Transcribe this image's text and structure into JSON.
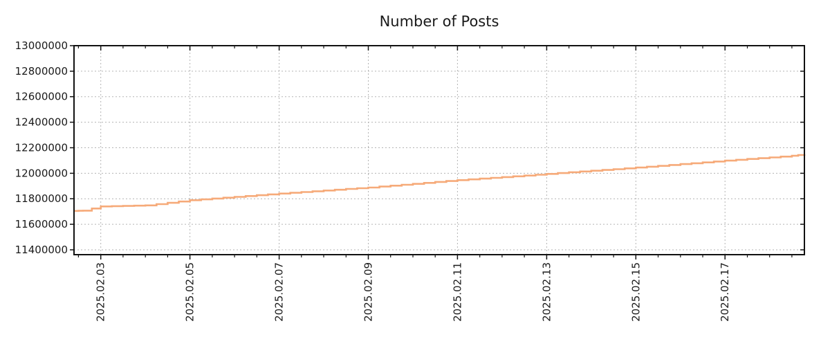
{
  "chart_data": {
    "type": "line",
    "title": "Number of Posts",
    "xlabel": "",
    "ylabel": "",
    "legend": "none",
    "grid": "dotted",
    "xlim_days_feb_2025": [
      2.4,
      18.78
    ],
    "ylim": [
      11362000,
      13000000
    ],
    "y_ticks": [
      {
        "value": 11400000,
        "label": "11400000"
      },
      {
        "value": 11600000,
        "label": "11600000"
      },
      {
        "value": 11800000,
        "label": "11800000"
      },
      {
        "value": 12000000,
        "label": "12000000"
      },
      {
        "value": 12200000,
        "label": "12200000"
      },
      {
        "value": 12400000,
        "label": "12400000"
      },
      {
        "value": 12600000,
        "label": "12600000"
      },
      {
        "value": 12800000,
        "label": "12800000"
      },
      {
        "value": 13000000,
        "label": "13000000"
      }
    ],
    "x_ticks": [
      {
        "day": 3,
        "label": "2025.02.03"
      },
      {
        "day": 5,
        "label": "2025.02.05"
      },
      {
        "day": 7,
        "label": "2025.02.07"
      },
      {
        "day": 9,
        "label": "2025.02.09"
      },
      {
        "day": 11,
        "label": "2025.02.11"
      },
      {
        "day": 13,
        "label": "2025.02.13"
      },
      {
        "day": 15,
        "label": "2025.02.15"
      },
      {
        "day": 17,
        "label": "2025.02.17"
      }
    ],
    "x_minor_tick_step_days": 0.5,
    "colors": {
      "line": "#f6aa79",
      "grid": "#b3b3b3",
      "axis": "#111111",
      "text": "#1a1a1a",
      "background": "#ffffff"
    },
    "series": [
      {
        "name": "posts",
        "x_days": [
          2.4,
          2.6,
          3.0,
          3.5,
          4.0,
          4.5,
          5.0,
          5.5,
          6.0,
          6.5,
          7.0,
          7.5,
          8.0,
          8.5,
          9.0,
          9.5,
          10.0,
          10.5,
          11.0,
          11.5,
          12.0,
          12.5,
          13.0,
          13.5,
          14.0,
          14.5,
          15.0,
          15.5,
          16.0,
          16.5,
          17.0,
          17.5,
          18.0,
          18.5,
          18.78
        ],
        "values": [
          11705000,
          11707000,
          11740000,
          11744000,
          11748000,
          11768000,
          11789000,
          11802000,
          11815000,
          11828000,
          11841000,
          11853000,
          11865000,
          11877000,
          11888000,
          11903000,
          11917000,
          11932000,
          11946000,
          11958000,
          11970000,
          11982000,
          11995000,
          12008000,
          12020000,
          12032000,
          12045000,
          12058000,
          12072000,
          12085000,
          12099000,
          12112000,
          12124000,
          12137000,
          12149000
        ]
      }
    ]
  }
}
